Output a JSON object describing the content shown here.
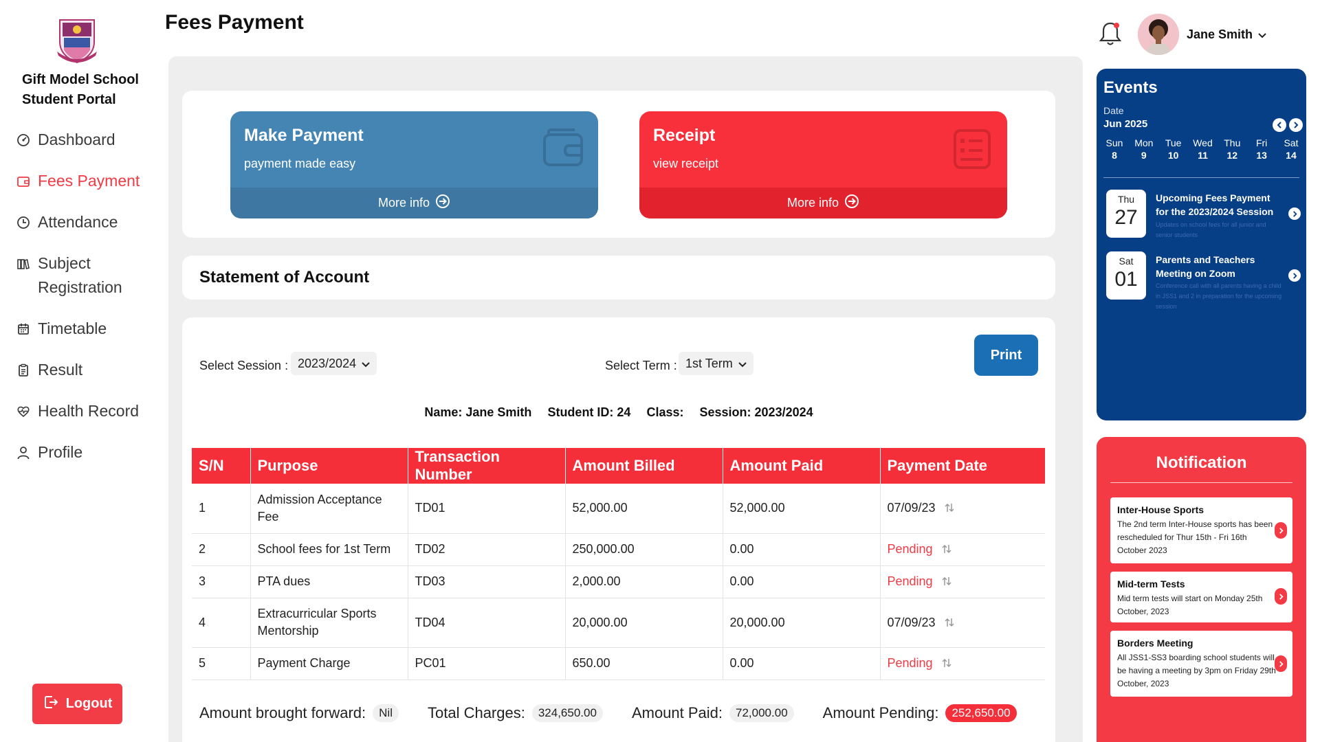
{
  "sidebar": {
    "school_name_line1": "Gift Model School",
    "school_name_line2": "Student Portal",
    "items": [
      {
        "label": "Dashboard",
        "icon": "dashboard-icon"
      },
      {
        "label": "Fees Payment",
        "icon": "wallet-icon",
        "active": true
      },
      {
        "label": "Attendance",
        "icon": "clock-icon"
      },
      {
        "label": "Subject Registration",
        "icon": "books-icon"
      },
      {
        "label": "Timetable",
        "icon": "calendar-icon"
      },
      {
        "label": "Result",
        "icon": "clipboard-icon"
      },
      {
        "label": "Health Record",
        "icon": "heartbeat-icon"
      },
      {
        "label": "Profile",
        "icon": "user-icon"
      }
    ],
    "logout_label": "Logout"
  },
  "header": {
    "page_title": "Fees Payment",
    "user_name": "Jane Smith"
  },
  "cards": {
    "make_payment": {
      "title": "Make Payment",
      "subtitle": "payment made easy",
      "more": "More info"
    },
    "receipt": {
      "title": "Receipt",
      "subtitle": "view receipt",
      "more": "More info"
    }
  },
  "statement": {
    "title": "Statement of Account",
    "session_label": "Select Session :",
    "session_value": "2023/2024",
    "term_label": "Select Term :",
    "term_value": "1st Term",
    "print_label": "Print",
    "info": {
      "name": "Name: Jane Smith",
      "student_id": "Student ID: 24",
      "class": "Class:",
      "session": "Session: 2023/2024"
    },
    "columns": [
      "S/N",
      "Purpose",
      "Transaction Number",
      "Amount Billed",
      "Amount Paid",
      "Payment Date"
    ],
    "rows": [
      {
        "sn": "1",
        "purpose": "Admission Acceptance Fee",
        "txn": "TD01",
        "billed": "52,000.00",
        "paid": "52,000.00",
        "date": "07/09/23",
        "pending": false
      },
      {
        "sn": "2",
        "purpose": "School fees for 1st Term",
        "txn": "TD02",
        "billed": "250,000.00",
        "paid": "0.00",
        "date": "Pending",
        "pending": true
      },
      {
        "sn": "3",
        "purpose": "PTA dues",
        "txn": "TD03",
        "billed": "2,000.00",
        "paid": "0.00",
        "date": "Pending",
        "pending": true
      },
      {
        "sn": "4",
        "purpose": "Extracurricular Sports Mentorship",
        "txn": "TD04",
        "billed": "20,000.00",
        "paid": "20,000.00",
        "date": "07/09/23",
        "pending": false
      },
      {
        "sn": "5",
        "purpose": "Payment Charge",
        "txn": "PC01",
        "billed": "650.00",
        "paid": "0.00",
        "date": "Pending",
        "pending": true
      }
    ],
    "totals": {
      "brought_forward_label": "Amount brought forward:",
      "brought_forward_value": "Nil",
      "total_charges_label": "Total Charges:",
      "total_charges_value": "324,650.00",
      "amount_paid_label": "Amount Paid:",
      "amount_paid_value": "72,000.00",
      "amount_pending_label": "Amount Pending:",
      "amount_pending_value": "252,650.00"
    }
  },
  "events": {
    "title": "Events",
    "date_label": "Date",
    "month": "Jun 2025",
    "week": [
      {
        "day": "Sun",
        "num": "8"
      },
      {
        "day": "Mon",
        "num": "9"
      },
      {
        "day": "Tue",
        "num": "10"
      },
      {
        "day": "Wed",
        "num": "11"
      },
      {
        "day": "Thu",
        "num": "12"
      },
      {
        "day": "Fri",
        "num": "13"
      },
      {
        "day": "Sat",
        "num": "14"
      }
    ],
    "items": [
      {
        "dow": "Thu",
        "day": "27",
        "title": "Upcoming Fees Payment for the 2023/2024 Session",
        "desc": "Updates on school fees for all junior and senior students"
      },
      {
        "dow": "Sat",
        "day": "01",
        "title": "Parents and Teachers Meeting on Zoom",
        "desc": "Conference call with all parents having a child in JSS1 and 2 in preparation for the upcoming session"
      }
    ]
  },
  "notifications": {
    "title": "Notification",
    "items": [
      {
        "title": "Inter-House Sports",
        "desc": "The 2nd term Inter-House sports has been rescheduled for Thur 15th - Fri 16th October 2023"
      },
      {
        "title": "Mid-term Tests",
        "desc": "Mid term tests will start on Monday 25th October, 2023"
      },
      {
        "title": "Borders Meeting",
        "desc": "All JSS1-SS3 boarding school students will be having a meeting by 3pm on Friday 29th October, 2023"
      }
    ]
  },
  "colors": {
    "accent_red": "#f42f3a",
    "accent_blue": "#4585b4",
    "events_navy": "#063f86",
    "print_blue": "#1a6fb5"
  }
}
